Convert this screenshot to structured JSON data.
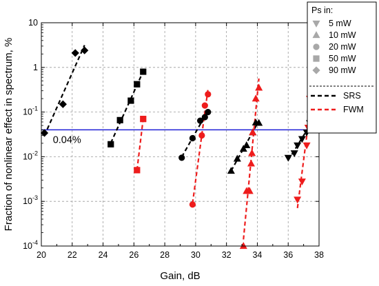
{
  "chart_data": {
    "type": "scatter",
    "xlabel": "Gain, dB",
    "ylabel": "Fraction of nonlinear effect in spectrum, %",
    "xlim": [
      20,
      38
    ],
    "ylim": [
      0.0001,
      10
    ],
    "yscale": "log",
    "x_ticks": [
      "20",
      "22",
      "24",
      "26",
      "28",
      "30",
      "32",
      "34",
      "36",
      "38"
    ],
    "y_ticks": [
      "10",
      "1",
      "10^-1",
      "10^-2",
      "10^-3",
      "10^-4"
    ],
    "grid": "dashed",
    "threshold": {
      "y": 0.04,
      "label": "0.04%",
      "color": "#1f1fd6"
    },
    "legend": {
      "placement": "top-right",
      "marker_title": "Ps in:",
      "marker_entries": [
        {
          "label": "5 mW",
          "marker": "triangle-down"
        },
        {
          "label": "10 mW",
          "marker": "triangle-up"
        },
        {
          "label": "20 mW",
          "marker": "circle"
        },
        {
          "label": "50 mW",
          "marker": "square"
        },
        {
          "label": "90 mW",
          "marker": "diamond"
        }
      ],
      "line_entries": [
        {
          "label": "SRS",
          "color": "#000000"
        },
        {
          "label": "FWM",
          "color": "#ee1c1c"
        }
      ]
    },
    "series": [
      {
        "effect": "SRS",
        "power": "90 mW",
        "marker": "diamond",
        "color": "#000000",
        "points": [
          [
            20.2,
            0.034
          ],
          [
            21.4,
            0.15
          ],
          [
            22.2,
            2.1
          ],
          [
            22.8,
            2.4
          ]
        ]
      },
      {
        "effect": "SRS",
        "power": "50 mW",
        "marker": "square",
        "color": "#000000",
        "points": [
          [
            24.5,
            0.019
          ],
          [
            25.1,
            0.066
          ],
          [
            25.8,
            0.18
          ],
          [
            26.2,
            0.42
          ],
          [
            26.6,
            0.8
          ]
        ]
      },
      {
        "effect": "FWM",
        "power": "50 mW",
        "marker": "square",
        "color": "#ee1c1c",
        "points": [
          [
            26.2,
            0.005
          ],
          [
            26.6,
            0.07
          ]
        ]
      },
      {
        "effect": "SRS",
        "power": "20 mW",
        "marker": "circle",
        "color": "#000000",
        "points": [
          [
            29.1,
            0.0095
          ],
          [
            29.8,
            0.026
          ],
          [
            30.3,
            0.064
          ],
          [
            30.6,
            0.077
          ],
          [
            30.8,
            0.1
          ]
        ]
      },
      {
        "effect": "FWM",
        "power": "20 mW",
        "marker": "circle",
        "color": "#ee1c1c",
        "points": [
          [
            29.8,
            0.00085
          ],
          [
            30.4,
            0.03
          ],
          [
            30.6,
            0.14
          ],
          [
            30.8,
            0.25
          ]
        ]
      },
      {
        "effect": "SRS",
        "power": "10 mW",
        "marker": "triangle-up",
        "color": "#000000",
        "points": [
          [
            32.3,
            0.0048
          ],
          [
            32.7,
            0.009
          ],
          [
            33.1,
            0.015
          ],
          [
            33.3,
            0.018
          ],
          [
            33.7,
            0.035
          ],
          [
            33.9,
            0.058
          ],
          [
            34.1,
            0.057
          ]
        ]
      },
      {
        "effect": "FWM",
        "power": "10 mW",
        "marker": "triangle-up",
        "color": "#ee1c1c",
        "points": [
          [
            33.1,
            0.0001
          ],
          [
            33.3,
            0.0017
          ],
          [
            33.5,
            0.0017
          ],
          [
            33.6,
            0.007
          ],
          [
            33.65,
            0.012
          ],
          [
            33.7,
            0.035
          ],
          [
            33.9,
            0.2
          ],
          [
            34.1,
            0.35
          ]
        ]
      },
      {
        "effect": "SRS",
        "power": "5 mW",
        "marker": "triangle-down",
        "color": "#000000",
        "points": [
          [
            36.0,
            0.0095
          ],
          [
            36.4,
            0.012
          ],
          [
            36.6,
            0.018
          ],
          [
            36.9,
            0.025
          ],
          [
            37.2,
            0.035
          ],
          [
            37.3,
            0.045
          ],
          [
            37.4,
            0.057
          ]
        ]
      },
      {
        "effect": "FWM",
        "power": "5 mW",
        "marker": "triangle-down",
        "color": "#ee1c1c",
        "points": [
          [
            36.6,
            0.0011
          ],
          [
            36.9,
            0.0028
          ],
          [
            37.2,
            0.018
          ],
          [
            37.3,
            0.045
          ],
          [
            37.4,
            0.2
          ]
        ]
      }
    ]
  }
}
